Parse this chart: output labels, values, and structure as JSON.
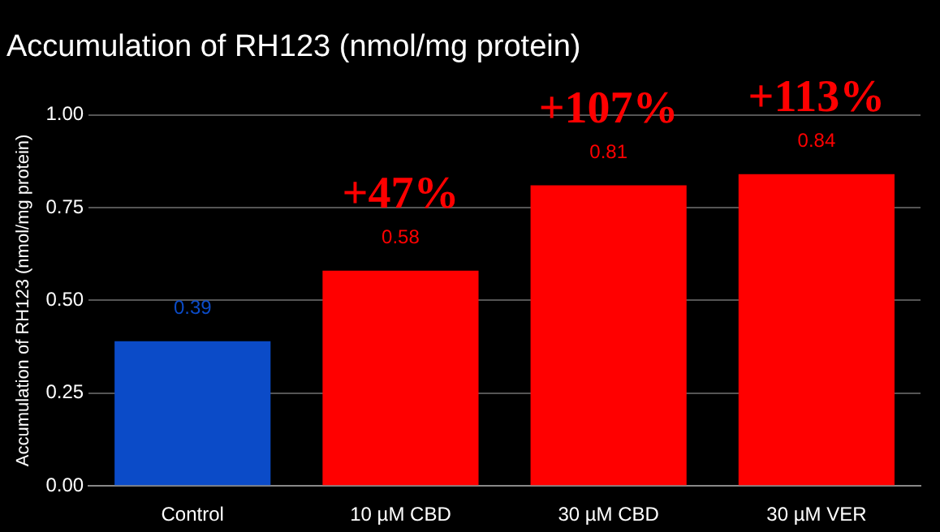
{
  "chart_data": {
    "type": "bar",
    "title": "Accumulation of RH123 (nmol/mg protein)",
    "ylabel": "Accumulation of RH123 (nmol/mg protein)",
    "categories": [
      "Control",
      "10 µM CBD",
      "30 µM CBD",
      "30 µM VER"
    ],
    "values": [
      0.39,
      0.58,
      0.81,
      0.84
    ],
    "colors": [
      "#0b4bc8",
      "#ff0000",
      "#ff0000",
      "#ff0000"
    ],
    "ylim": [
      0,
      1
    ],
    "yticks": [
      {
        "value": 0,
        "label": "0.00"
      },
      {
        "value": 0.25,
        "label": "0.25"
      },
      {
        "value": 0.5,
        "label": "0.50"
      },
      {
        "value": 0.75,
        "label": "0.75"
      },
      {
        "value": 1,
        "label": "1.00"
      }
    ],
    "grid": "y",
    "legend": false,
    "data_labels": true,
    "annotations": [
      {
        "text": "+47%",
        "x": "10 µM CBD",
        "y": 0.58
      },
      {
        "text": "+107%",
        "x": "30 µM CBD",
        "y": 0.81
      },
      {
        "text": "+113%",
        "x": "30 µM VER",
        "y": 0.84
      }
    ]
  }
}
